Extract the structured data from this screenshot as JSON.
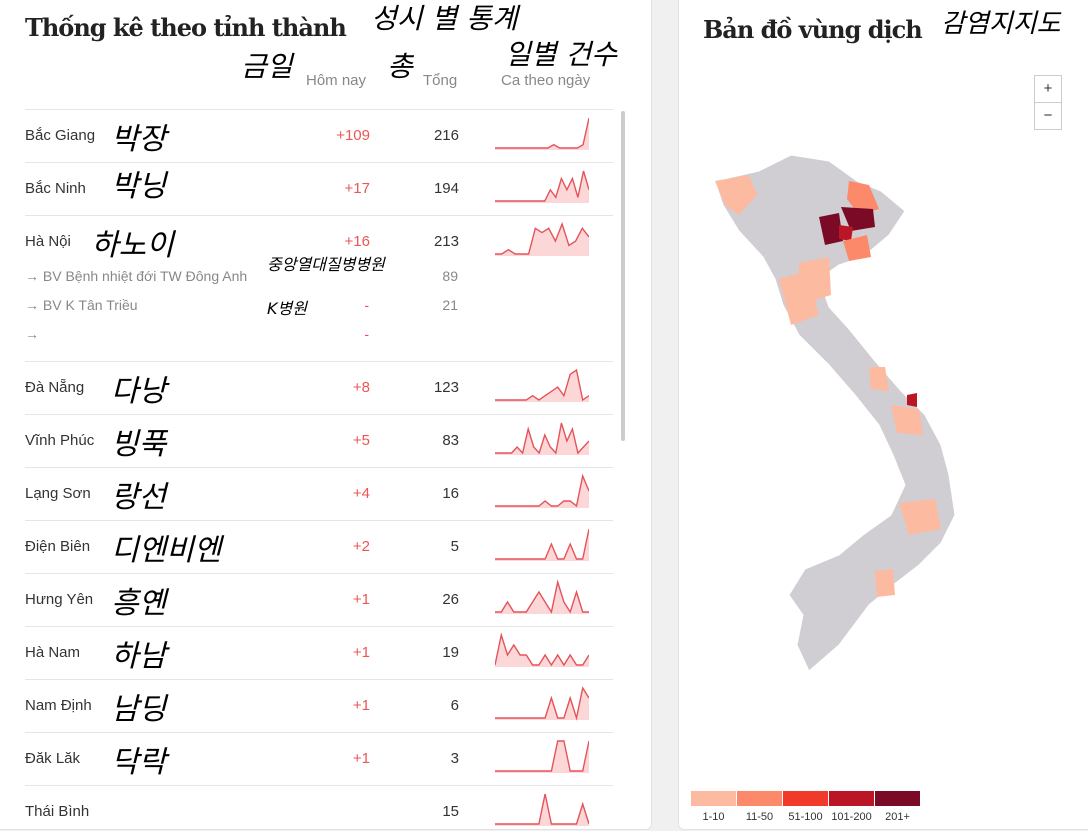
{
  "left": {
    "title": "Thống kê theo tỉnh thành",
    "title_annotation": "성시 별 통계",
    "columns": {
      "today": "Hôm nay",
      "today_annotation": "금일",
      "total": "Tổng",
      "total_annotation": "총",
      "daily": "Ca theo ngày",
      "daily_annotation": "일별 건수"
    },
    "rows": [
      {
        "name": "Bắc Giang",
        "annotation": "박장",
        "today": "+109",
        "total": "216",
        "spark": [
          0,
          0,
          0,
          0,
          0,
          0,
          0,
          0,
          0,
          0,
          1,
          0,
          0,
          0,
          0,
          1,
          9
        ]
      },
      {
        "name": "Bắc Ninh",
        "annotation": "박닝",
        "today": "+17",
        "total": "194",
        "spark": [
          0,
          0,
          0,
          0,
          0,
          0,
          0,
          0,
          0,
          0,
          3,
          1,
          6,
          3,
          6,
          1,
          8,
          3
        ]
      },
      {
        "name": "Hà Nội",
        "annotation": "하노이",
        "today": "+16",
        "total": "213",
        "spark": [
          0,
          0,
          1,
          0,
          0,
          0,
          6,
          5,
          6,
          3,
          7,
          2,
          3,
          6,
          4
        ]
      },
      {
        "name": "Đà Nẵng",
        "annotation": "다낭",
        "today": "+8",
        "total": "123",
        "spark": [
          0,
          0,
          0,
          0,
          0,
          0,
          1,
          0,
          1,
          2,
          3,
          1,
          6,
          7,
          0,
          1
        ]
      },
      {
        "name": "Vĩnh Phúc",
        "annotation": "빙푹",
        "today": "+5",
        "total": "83",
        "spark": [
          0,
          0,
          0,
          0,
          1,
          0,
          4,
          1,
          0,
          3,
          1,
          0,
          5,
          2,
          4,
          0,
          1,
          2
        ]
      },
      {
        "name": "Lạng Sơn",
        "annotation": "랑선",
        "today": "+4",
        "total": "16",
        "spark": [
          0,
          0,
          0,
          0,
          0,
          0,
          0,
          0,
          1,
          0,
          0,
          1,
          1,
          0,
          6,
          3
        ]
      },
      {
        "name": "Điện Biên",
        "annotation": "디엔비엔",
        "today": "+2",
        "total": "5",
        "spark": [
          0,
          0,
          0,
          0,
          0,
          0,
          0,
          0,
          0,
          2,
          0,
          0,
          2,
          0,
          0,
          4
        ]
      },
      {
        "name": "Hưng Yên",
        "annotation": "흥옌",
        "today": "+1",
        "total": "26",
        "spark": [
          0,
          0,
          1,
          0,
          0,
          0,
          1,
          2,
          1,
          0,
          3,
          1,
          0,
          2,
          0,
          0
        ]
      },
      {
        "name": "Hà Nam",
        "annotation": "하남",
        "today": "+1",
        "total": "19",
        "spark": [
          0,
          3,
          1,
          2,
          1,
          1,
          0,
          0,
          1,
          0,
          1,
          0,
          1,
          0,
          0,
          1
        ]
      },
      {
        "name": "Nam Định",
        "annotation": "남딩",
        "today": "+1",
        "total": "6",
        "spark": [
          0,
          0,
          0,
          0,
          0,
          0,
          0,
          0,
          0,
          2,
          0,
          0,
          2,
          0,
          3,
          2
        ]
      },
      {
        "name": "Đăk Lăk",
        "annotation": "닥락",
        "today": "+1",
        "total": "3",
        "spark": [
          0,
          0,
          0,
          0,
          0,
          0,
          0,
          0,
          0,
          0,
          1,
          1,
          0,
          0,
          0,
          1
        ]
      },
      {
        "name": "Thái Bình",
        "annotation": "",
        "today": "",
        "total": "15",
        "spark": [
          0,
          0,
          0,
          0,
          0,
          0,
          0,
          0,
          3,
          0,
          0,
          0,
          0,
          0,
          2,
          0
        ]
      }
    ],
    "sub_rows": [
      {
        "name": "→ BV Bệnh nhiệt đới TW Đông Anh",
        "annotation": "중앙열대질병병원",
        "today": "",
        "total": "89"
      },
      {
        "name": "→ BV K Tân Triều",
        "annotation": "K병원",
        "today": "-",
        "total": "21"
      },
      {
        "name": "→",
        "annotation": "",
        "today": "-",
        "total": ""
      }
    ]
  },
  "right": {
    "title": "Bản đồ vùng dịch",
    "title_annotation": "감염지지도",
    "zoom_in": "+",
    "zoom_out": "−",
    "legend": [
      {
        "label": "1-10",
        "color": "#fcbba1"
      },
      {
        "label": "11-50",
        "color": "#fc8a6a"
      },
      {
        "label": "51-100",
        "color": "#f03b2b"
      },
      {
        "label": "101-200",
        "color": "#bb1626"
      },
      {
        "label": "201+",
        "color": "#7a0a26"
      }
    ],
    "base_color": "#d0cdd3"
  },
  "colors": {
    "spark_line": "#e5535a",
    "spark_fill": "#fbd7d8"
  }
}
